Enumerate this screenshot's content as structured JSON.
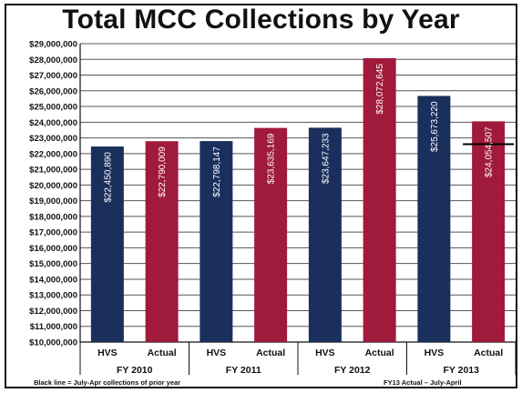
{
  "chart_data": {
    "type": "bar",
    "title": "Total MCC Collections by Year",
    "ylim": [
      10000000,
      29000000
    ],
    "y_ticks": [
      "$10,000,000",
      "$11,000,000",
      "$12,000,000",
      "$13,000,000",
      "$14,000,000",
      "$15,000,000",
      "$16,000,000",
      "$17,000,000",
      "$18,000,000",
      "$19,000,000",
      "$20,000,000",
      "$21,000,000",
      "$22,000,000",
      "$23,000,000",
      "$24,000,000",
      "$25,000,000",
      "$26,000,000",
      "$27,000,000",
      "$28,000,000",
      "$29,000,000"
    ],
    "grid": true,
    "groups": [
      "FY 2010",
      "FY 2011",
      "FY 2012",
      "FY 2013"
    ],
    "categories": [
      "HVS",
      "Actual"
    ],
    "bars": [
      {
        "group": "FY 2010",
        "category": "HVS",
        "value": 22450890,
        "label": "$22,450,890",
        "color": "#1b2f5c"
      },
      {
        "group": "FY 2010",
        "category": "Actual",
        "value": 22790009,
        "label": "$22,790,009",
        "color": "#a01a3c"
      },
      {
        "group": "FY 2011",
        "category": "HVS",
        "value": 22798147,
        "label": "$22,798,147",
        "color": "#1b2f5c"
      },
      {
        "group": "FY 2011",
        "category": "Actual",
        "value": 23635169,
        "label": "$23,635,169",
        "color": "#a01a3c"
      },
      {
        "group": "FY 2012",
        "category": "HVS",
        "value": 23647233,
        "label": "$23,647,233",
        "color": "#1b2f5c"
      },
      {
        "group": "FY 2012",
        "category": "Actual",
        "value": 28072645,
        "label": "$28,072,645",
        "color": "#a01a3c"
      },
      {
        "group": "FY 2013",
        "category": "HVS",
        "value": 25673220,
        "label": "$25,673,220",
        "color": "#1b2f5c"
      },
      {
        "group": "FY 2013",
        "category": "Actual",
        "value": 24054507,
        "label": "$24,054,507",
        "color": "#a01a3c"
      }
    ],
    "reference_line": {
      "group": "FY 2013",
      "category": "Actual",
      "value": 22600000,
      "color": "#000000"
    },
    "notes": {
      "left": "Black line = July-Apr collections of prior year",
      "right": "FY13 Actual – July-April"
    }
  }
}
